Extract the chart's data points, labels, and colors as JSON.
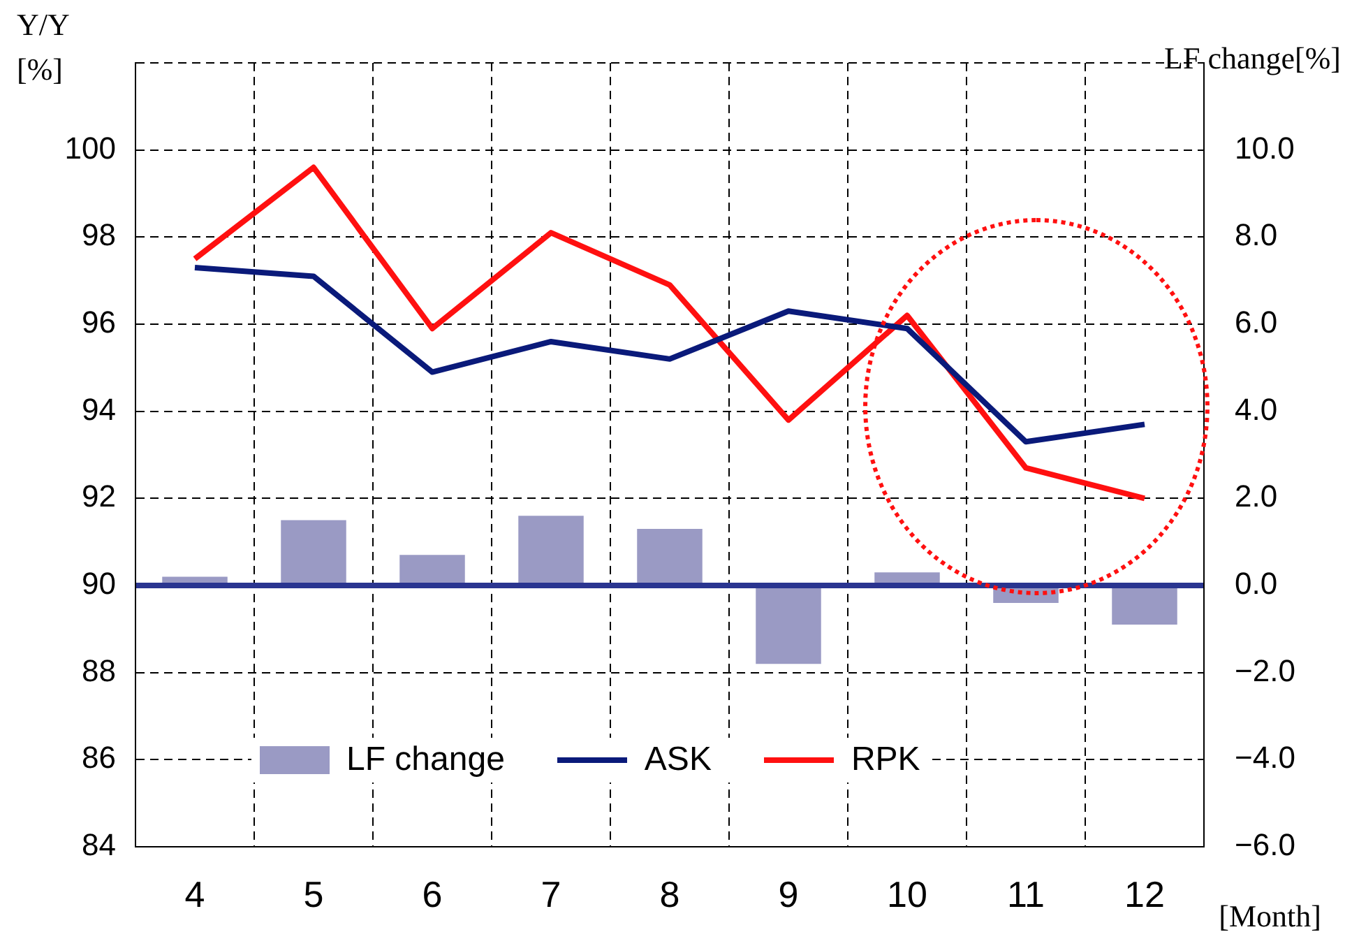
{
  "chart_data": {
    "type": "bar",
    "categories": [
      "4",
      "5",
      "6",
      "7",
      "8",
      "9",
      "10",
      "11",
      "12"
    ],
    "xlabel": "[Month]",
    "ylabel": "Y/Y\n[%]",
    "y2label": "LF  change[%]",
    "series": [
      {
        "name": "LF change",
        "axis": "y2",
        "color": "#9a9ac4",
        "values": [
          0.2,
          1.5,
          0.7,
          1.6,
          1.3,
          -1.8,
          0.3,
          -0.4,
          -0.9
        ]
      },
      {
        "name": "ASK",
        "type": "line",
        "color": "#0a1a7a",
        "values": [
          97.3,
          97.1,
          94.9,
          95.6,
          95.2,
          96.3,
          95.9,
          93.3,
          93.7
        ]
      },
      {
        "name": "RPK",
        "type": "line",
        "color": "#ff1010",
        "values": [
          97.5,
          99.6,
          95.9,
          98.1,
          96.9,
          93.8,
          96.2,
          92.7,
          92.0
        ]
      }
    ],
    "ylim": [
      84,
      102
    ],
    "yticks": [
      84,
      86,
      88,
      90,
      92,
      94,
      96,
      98,
      100,
      {
        "value": 102,
        "label": null
      }
    ],
    "y2lim": [
      -6,
      12
    ],
    "y2ticks": [
      {
        "value": -6,
        "label": "−6.0"
      },
      {
        "value": -4,
        "label": "−4.0"
      },
      {
        "value": -2,
        "label": "−2.0"
      },
      {
        "value": 0,
        "label": "0.0"
      },
      {
        "value": 2,
        "label": "2.0"
      },
      {
        "value": 4,
        "label": "4.0"
      },
      {
        "value": 6,
        "label": "6.0"
      },
      {
        "value": 8,
        "label": "8.0"
      },
      {
        "value": 10,
        "label": "10.0"
      }
    ],
    "ref_lines": [
      {
        "axis": "y2",
        "value": 0,
        "color": "#2a3590"
      }
    ],
    "grid": true,
    "legend": "bottom",
    "marker": "none",
    "line_style": "solid"
  }
}
